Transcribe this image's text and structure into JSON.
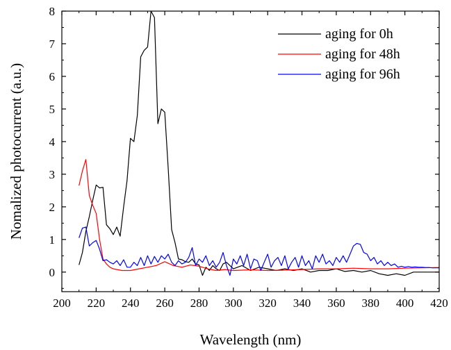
{
  "chart_data": {
    "type": "line",
    "title": "",
    "xlabel": "Wavelength (nm)",
    "ylabel": "Nomalized photocurrent (a.u.)",
    "xlim": [
      200,
      420
    ],
    "ylim": [
      -0.6,
      8
    ],
    "xticks": [
      200,
      220,
      240,
      260,
      280,
      300,
      320,
      340,
      360,
      380,
      400,
      420
    ],
    "yticks": [
      0,
      1,
      2,
      3,
      4,
      5,
      6,
      7,
      8
    ],
    "grid": false,
    "legend_position": "top-right",
    "series": [
      {
        "name": "aging for 0h",
        "color": "#000000",
        "x": [
          210,
          212,
          214,
          216,
          218,
          220,
          222,
          224,
          226,
          228,
          230,
          232,
          234,
          236,
          238,
          240,
          242,
          244,
          246,
          248,
          250,
          252,
          254,
          256,
          258,
          260,
          262,
          264,
          266,
          268,
          270,
          272,
          274,
          276,
          278,
          280,
          282,
          284,
          286,
          288,
          290,
          292,
          294,
          296,
          298,
          300,
          305,
          310,
          315,
          320,
          325,
          330,
          335,
          340,
          345,
          350,
          355,
          360,
          365,
          370,
          375,
          380,
          385,
          390,
          395,
          400,
          405,
          410,
          420
        ],
        "y": [
          0.22,
          0.6,
          1.25,
          1.7,
          2.2,
          2.67,
          2.58,
          2.6,
          1.45,
          1.33,
          1.15,
          1.38,
          1.1,
          2.0,
          2.8,
          4.1,
          4.0,
          4.8,
          6.6,
          6.8,
          6.9,
          8.0,
          7.8,
          4.55,
          5.0,
          4.9,
          3.2,
          1.3,
          0.9,
          0.4,
          0.38,
          0.32,
          0.3,
          0.4,
          0.25,
          0.22,
          -0.1,
          0.15,
          0.05,
          0.2,
          0.1,
          0.05,
          0.25,
          0.3,
          0.2,
          0.1,
          0.2,
          0.05,
          0.15,
          0.1,
          0.05,
          0.1,
          0.05,
          0.1,
          0.0,
          0.05,
          0.05,
          0.1,
          0.02,
          0.05,
          0.0,
          0.05,
          -0.05,
          -0.1,
          -0.05,
          -0.1,
          0.0,
          0.0,
          0.0
        ]
      },
      {
        "name": "aging for 48h",
        "color": "#ff0000",
        "x": [
          210,
          212,
          214,
          216,
          218,
          220,
          222,
          224,
          226,
          228,
          230,
          235,
          240,
          245,
          250,
          255,
          260,
          265,
          270,
          275,
          280,
          285,
          290,
          295,
          300,
          310,
          320,
          330,
          340,
          350,
          360,
          370,
          380,
          390,
          400,
          410,
          420
        ],
        "y": [
          2.65,
          3.1,
          3.45,
          2.35,
          2.05,
          1.8,
          1.0,
          0.4,
          0.25,
          0.15,
          0.1,
          0.05,
          0.05,
          0.1,
          0.15,
          0.2,
          0.32,
          0.2,
          0.15,
          0.22,
          0.18,
          0.1,
          0.05,
          0.08,
          0.05,
          0.07,
          0.05,
          0.06,
          0.08,
          0.1,
          0.1,
          0.12,
          0.1,
          0.1,
          0.12,
          0.13,
          0.14
        ]
      },
      {
        "name": "aging for 96h",
        "color": "#0000ff",
        "x": [
          210,
          212,
          214,
          216,
          218,
          220,
          222,
          224,
          226,
          228,
          230,
          232,
          234,
          236,
          238,
          240,
          242,
          244,
          246,
          248,
          250,
          252,
          254,
          256,
          258,
          260,
          262,
          264,
          266,
          268,
          270,
          272,
          274,
          276,
          278,
          280,
          282,
          284,
          286,
          288,
          290,
          292,
          294,
          296,
          298,
          300,
          302,
          304,
          306,
          308,
          310,
          312,
          314,
          316,
          318,
          320,
          322,
          324,
          326,
          328,
          330,
          332,
          334,
          336,
          338,
          340,
          342,
          344,
          346,
          348,
          350,
          352,
          354,
          356,
          358,
          360,
          362,
          364,
          366,
          368,
          370,
          372,
          374,
          376,
          378,
          380,
          382,
          384,
          386,
          388,
          390,
          392,
          394,
          396,
          398,
          400,
          402,
          404,
          406,
          408,
          410,
          412,
          414,
          416,
          418,
          420
        ],
        "y": [
          1.05,
          1.35,
          1.38,
          0.8,
          0.9,
          0.97,
          0.7,
          0.35,
          0.38,
          0.3,
          0.25,
          0.35,
          0.2,
          0.38,
          0.15,
          0.15,
          0.3,
          0.2,
          0.45,
          0.2,
          0.5,
          0.25,
          0.48,
          0.3,
          0.5,
          0.4,
          0.55,
          0.3,
          0.2,
          0.35,
          0.25,
          0.3,
          0.45,
          0.75,
          0.2,
          0.4,
          0.3,
          0.5,
          0.2,
          0.35,
          0.15,
          0.3,
          0.6,
          0.2,
          -0.1,
          0.4,
          0.25,
          0.5,
          0.2,
          0.55,
          0.1,
          0.4,
          0.35,
          0.05,
          0.3,
          0.55,
          0.15,
          0.35,
          0.45,
          0.2,
          0.5,
          0.1,
          0.3,
          0.45,
          0.15,
          0.5,
          0.2,
          0.35,
          0.1,
          0.5,
          0.3,
          0.55,
          0.25,
          0.35,
          0.2,
          0.45,
          0.3,
          0.5,
          0.3,
          0.55,
          0.8,
          0.88,
          0.85,
          0.6,
          0.55,
          0.35,
          0.45,
          0.25,
          0.35,
          0.2,
          0.3,
          0.2,
          0.25,
          0.15,
          0.18,
          0.15,
          0.17,
          0.15,
          0.16,
          0.15,
          0.15,
          0.14,
          0.14,
          0.13,
          0.13,
          0.13
        ]
      }
    ]
  }
}
